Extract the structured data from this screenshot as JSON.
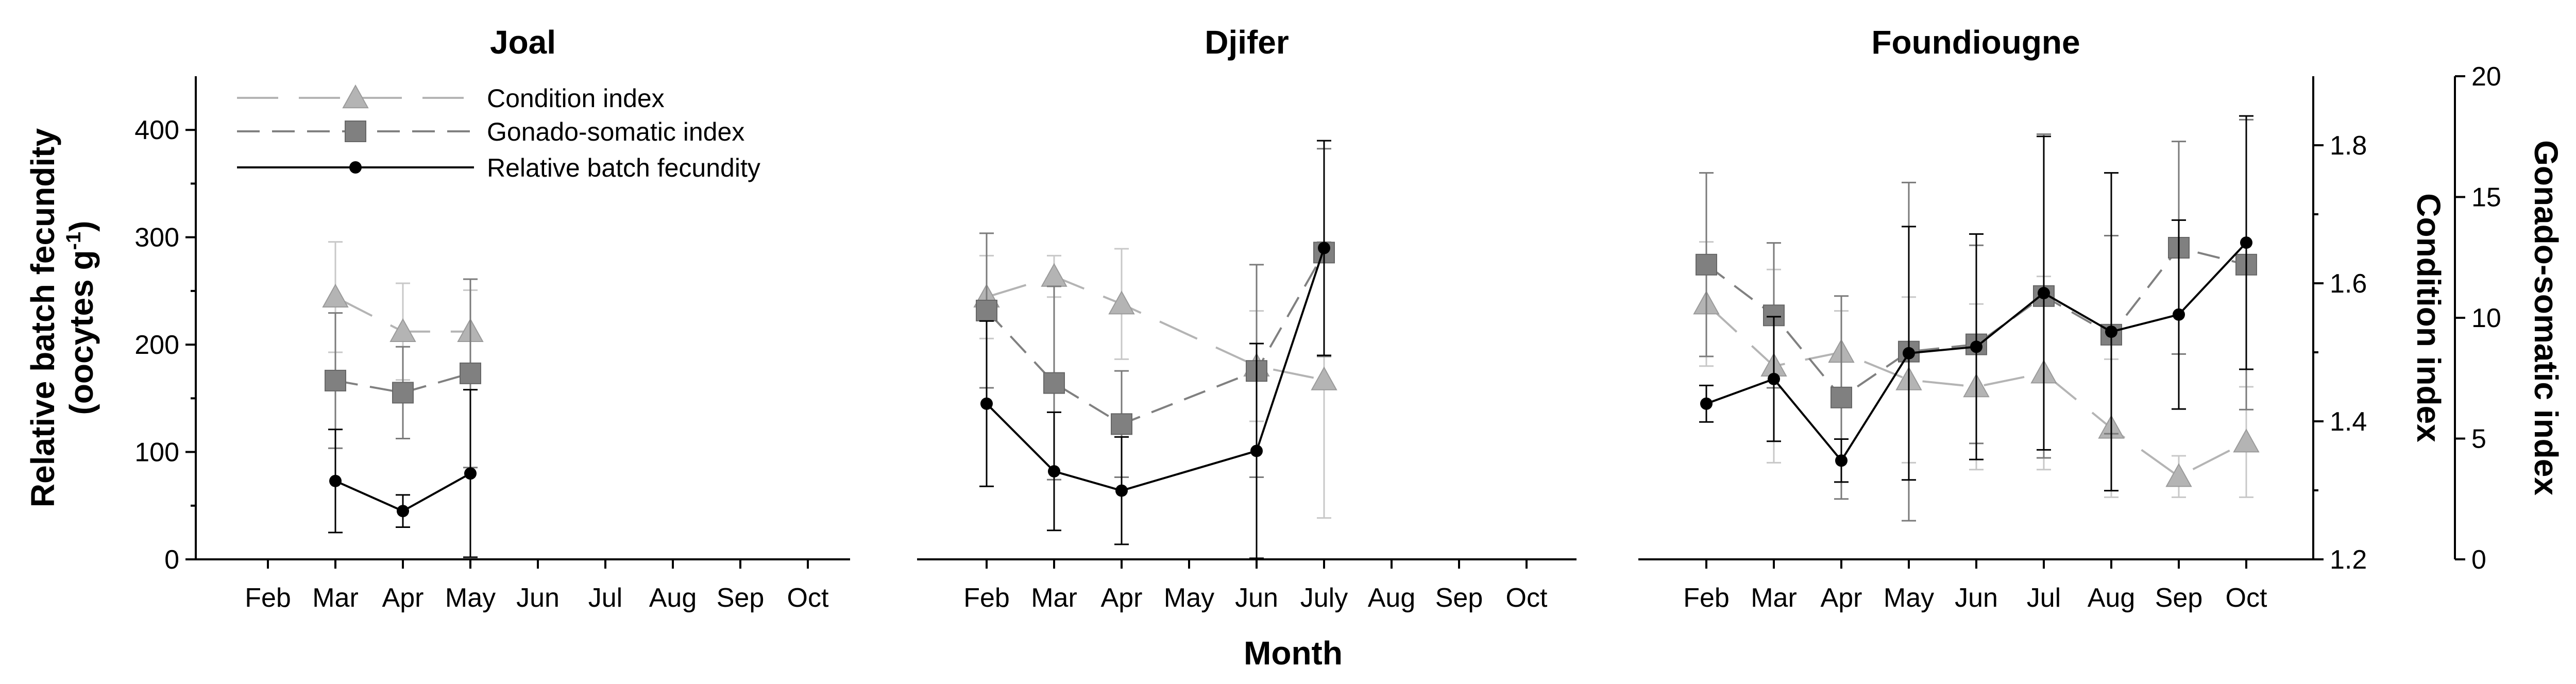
{
  "chart_data": {
    "type": "line",
    "xlabel": "Month",
    "ylabel_left": "Relative batch fecundity",
    "ylabel_left_unit": "(oocytes g",
    "ylabel_left_sup": "-1",
    "ylabel_left_close": ")",
    "ylabel_right_inner": "Condition index",
    "ylabel_right_outer": "Gonado-somatic index",
    "y_left": {
      "range": [
        0,
        450
      ],
      "ticks": [
        "0",
        "100",
        "200",
        "300",
        "400"
      ]
    },
    "y_ci": {
      "range": [
        1.2,
        1.9
      ],
      "ticks": [
        "1.2",
        "1.4",
        "1.6",
        "1.8"
      ]
    },
    "y_gsi": {
      "range": [
        0,
        20
      ],
      "ticks": [
        "0",
        "5",
        "10",
        "15",
        "20"
      ]
    },
    "legend": {
      "position": "top-left",
      "entries": [
        "Condition index",
        "Gonado-somatic index",
        "Relative batch fecundity"
      ]
    },
    "colors": {
      "ci": "#b4b4b4",
      "gsi": "#808080",
      "rbf": "#000000"
    },
    "panels": [
      {
        "title": "Joal",
        "categories": [
          "Feb",
          "Mar",
          "Apr",
          "May",
          "Jun",
          "Jul",
          "Aug",
          "Sep",
          "Oct"
        ],
        "series": [
          {
            "key": "ci",
            "x": [
              "Mar",
              "Apr",
              "May"
            ],
            "values": [
              1.58,
              1.53,
              1.53
            ],
            "errors": [
              0.08,
              0.07,
              0.06
            ]
          },
          {
            "key": "gsi",
            "x": [
              "Mar",
              "Apr",
              "May"
            ],
            "values": [
              7.4,
              6.9,
              7.7
            ],
            "errors": [
              2.8,
              1.9,
              3.9
            ]
          },
          {
            "key": "rbf",
            "x": [
              "Mar",
              "Apr",
              "May"
            ],
            "values": [
              73,
              45,
              80
            ],
            "errors": [
              48,
              15,
              78
            ]
          }
        ]
      },
      {
        "title": "Djifer",
        "categories": [
          "Feb",
          "Mar",
          "Apr",
          "May",
          "Jun",
          "July",
          "Aug",
          "Sep",
          "Oct"
        ],
        "series": [
          {
            "key": "ci",
            "x": [
              "Feb",
              "Mar",
              "Apr",
              "Jun",
              "July"
            ],
            "values": [
              1.58,
              1.61,
              1.57,
              1.48,
              1.46
            ],
            "errors": [
              0.06,
              0.03,
              0.08,
              0.08,
              0.2
            ]
          },
          {
            "key": "gsi",
            "x": [
              "Feb",
              "Mar",
              "Apr",
              "Jun",
              "July"
            ],
            "values": [
              10.3,
              7.3,
              5.6,
              7.8,
              12.7
            ],
            "errors": [
              3.2,
              4.0,
              2.2,
              4.4,
              4.3
            ]
          },
          {
            "key": "rbf",
            "x": [
              "Feb",
              "Mar",
              "Apr",
              "Jun",
              "July"
            ],
            "values": [
              145,
              82,
              64,
              101,
              290
            ],
            "errors": [
              77,
              55,
              50,
              100,
              100
            ]
          }
        ]
      },
      {
        "title": "Foundiougne",
        "categories": [
          "Feb",
          "Mar",
          "Apr",
          "May",
          "Jun",
          "Jul",
          "Aug",
          "Sep",
          "Oct"
        ],
        "series": [
          {
            "key": "ci",
            "x": [
              "Feb",
              "Mar",
              "Apr",
              "May",
              "Jun",
              "Jul",
              "Aug",
              "Sep",
              "Oct"
            ],
            "values": [
              1.57,
              1.48,
              1.5,
              1.46,
              1.45,
              1.47,
              1.39,
              1.32,
              1.37
            ],
            "errors": [
              0.09,
              0.14,
              0.06,
              0.12,
              0.12,
              0.14,
              0.1,
              0.03,
              0.08
            ]
          },
          {
            "key": "gsi",
            "x": [
              "Feb",
              "Mar",
              "Apr",
              "May",
              "Jun",
              "Jul",
              "Aug",
              "Sep",
              "Oct"
            ],
            "values": [
              12.2,
              10.1,
              6.7,
              8.6,
              8.9,
              10.9,
              9.3,
              12.9,
              12.2
            ],
            "errors": [
              3.8,
              3.0,
              4.2,
              7.0,
              4.1,
              6.7,
              4.1,
              4.4,
              6.0
            ]
          },
          {
            "key": "rbf",
            "x": [
              "Feb",
              "Mar",
              "Apr",
              "May",
              "Jun",
              "Jul",
              "Aug",
              "Sep",
              "Oct"
            ],
            "values": [
              145,
              168,
              92,
              192,
              198,
              248,
              212,
              228,
              295
            ],
            "errors": [
              17,
              58,
              20,
              118,
              105,
              146,
              148,
              88,
              118
            ]
          }
        ]
      }
    ]
  }
}
